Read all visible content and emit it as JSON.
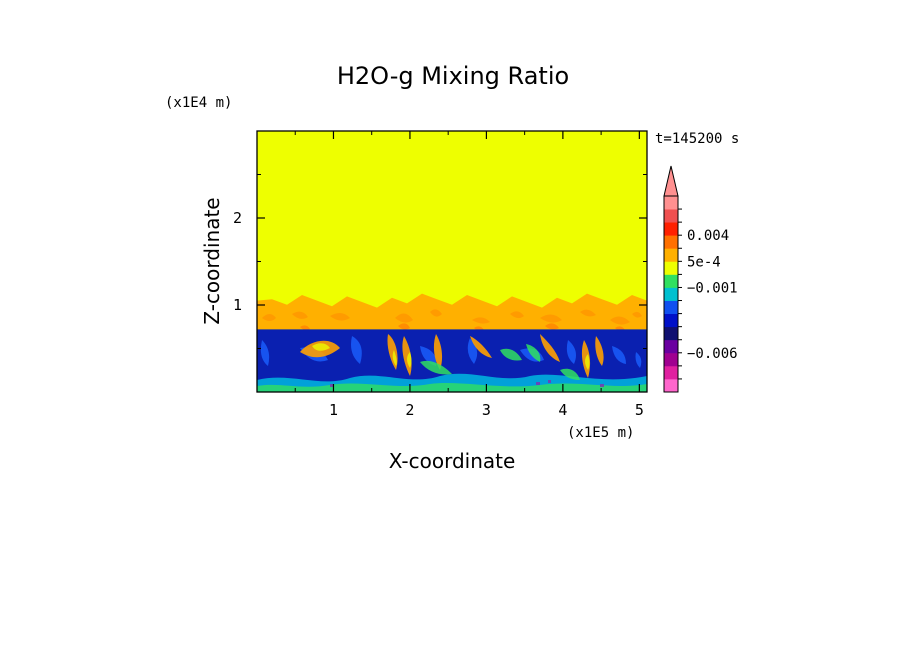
{
  "chart_data": {
    "type": "heatmap",
    "title": "H2O-g Mixing Ratio",
    "xlabel": "X-coordinate",
    "ylabel": "Z-coordinate",
    "x_scale_label": "(x1E5 m)",
    "y_scale_label": "(x1E4 m)",
    "time_label": "t=145200 s",
    "xlim": [
      0,
      5.1
    ],
    "ylim": [
      0,
      3.0
    ],
    "x_ticks": [
      1,
      2,
      3,
      4,
      5
    ],
    "y_ticks": [
      1,
      2
    ],
    "x_tick_labels": [
      "1",
      "2",
      "3",
      "4",
      "5"
    ],
    "y_tick_labels": [
      "1",
      "2"
    ],
    "layers": [
      {
        "name": "upper",
        "z_range": [
          1.05,
          3.0
        ],
        "color": "#eeff00"
      },
      {
        "name": "transition",
        "z_range": [
          0.72,
          1.05
        ],
        "color": "#ffb000"
      },
      {
        "name": "lower",
        "z_range": [
          0.0,
          0.72
        ],
        "color": "#0a20b0"
      }
    ],
    "colorbar": {
      "levels": [
        {
          "color": "#ff66cc"
        },
        {
          "color": "#e020a0"
        },
        {
          "color": "#a00090"
        },
        {
          "color": "#6a00a0"
        },
        {
          "color": "#101070"
        },
        {
          "color": "#0010c8"
        },
        {
          "color": "#1050f0"
        },
        {
          "color": "#00c0d0"
        },
        {
          "color": "#30e060"
        },
        {
          "color": "#eeff00"
        },
        {
          "color": "#ffb000"
        },
        {
          "color": "#ff7000"
        },
        {
          "color": "#ff2000"
        },
        {
          "color": "#f05050"
        },
        {
          "color": "#ff9090"
        }
      ],
      "tick_labels": [
        {
          "text": "0.004",
          "level": 12
        },
        {
          "text": "5e-4",
          "level": 10
        },
        {
          "text": "−0.001",
          "level": 8
        },
        {
          "text": "−0.006",
          "level": 3
        }
      ]
    }
  }
}
